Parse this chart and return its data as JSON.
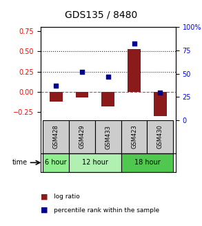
{
  "title": "GDS135 / 8480",
  "samples": [
    "GSM428",
    "GSM429",
    "GSM433",
    "GSM423",
    "GSM430"
  ],
  "log_ratios": [
    -0.12,
    -0.07,
    -0.18,
    0.53,
    -0.3
  ],
  "percentile_ranks": [
    37,
    52,
    47,
    82,
    30
  ],
  "time_groups": [
    {
      "label": "6 hour",
      "start": 0,
      "end": 1,
      "color": "#90ee90"
    },
    {
      "label": "12 hour",
      "start": 1,
      "end": 3,
      "color": "#b0f0b0"
    },
    {
      "label": "18 hour",
      "start": 3,
      "end": 5,
      "color": "#50c850"
    }
  ],
  "bar_color": "#8b1a1a",
  "dot_color": "#00008b",
  "left_ylim": [
    -0.35,
    0.8
  ],
  "left_yticks": [
    -0.25,
    0,
    0.25,
    0.5,
    0.75
  ],
  "right_yticks": [
    0,
    25,
    50,
    75,
    100
  ],
  "hline_positions": [
    0,
    0.25,
    0.5
  ],
  "hline_styles": [
    "--",
    ":",
    ":"
  ],
  "hline_colors": [
    "#cc4444",
    "#222222",
    "#222222"
  ],
  "background_color": "#ffffff",
  "sample_bg_color": "#cccccc",
  "bar_width": 0.5
}
